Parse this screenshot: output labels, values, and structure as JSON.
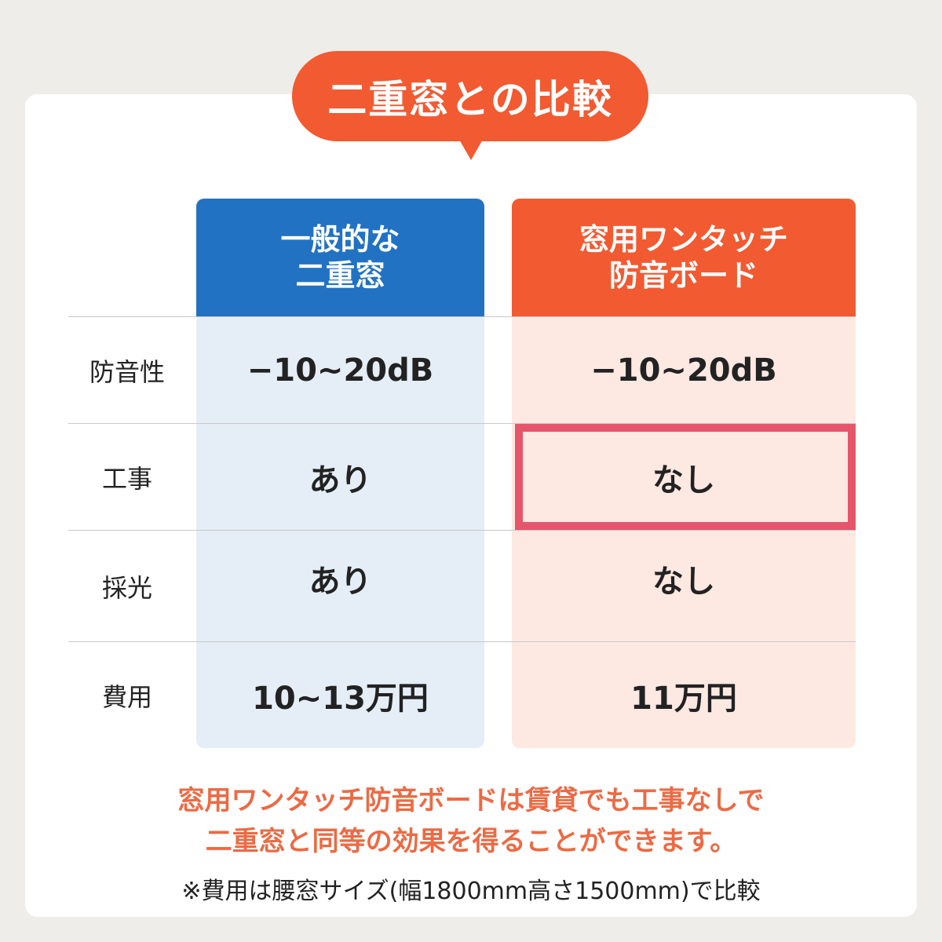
{
  "title": "二重窓との比較",
  "columns": [
    {
      "line1": "一般的な",
      "line2": "二重窓",
      "color": "#2272c3"
    },
    {
      "line1": "窓用ワンタッチ",
      "line2": "防音ボード",
      "color": "#f25a32"
    }
  ],
  "rows": [
    {
      "label": "防音性",
      "values": [
        "−10~20dB",
        "−10~20dB"
      ]
    },
    {
      "label": "工事",
      "values": [
        "あり",
        "なし"
      ],
      "highlighted_column": 1
    },
    {
      "label": "採光",
      "values": [
        "あり",
        "なし"
      ]
    },
    {
      "label": "費用",
      "values": [
        "10~13万円",
        "11万円"
      ]
    }
  ],
  "note_lines": [
    "窓用ワンタッチ防音ボードは賃貸でも工事なしで",
    "二重窓と同等の効果を得ることができます。"
  ],
  "footnote": "※費用は腰窓サイズ(幅1800mm高さ1500mm)で比較",
  "colors": {
    "accent": "#f25a32",
    "blue": "#2272c3",
    "highlight": "#e5566a",
    "note": "#ec6a44"
  }
}
